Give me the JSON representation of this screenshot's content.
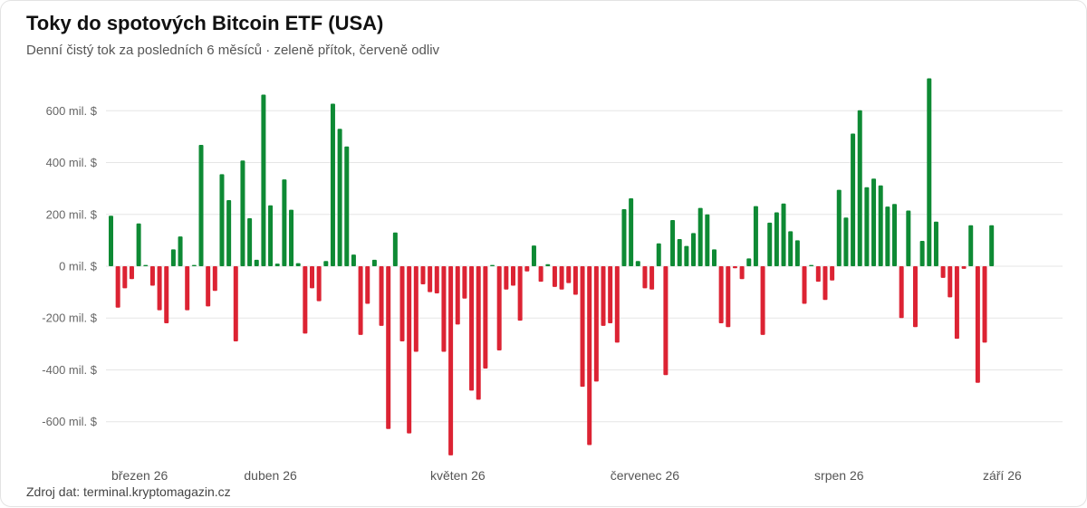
{
  "title": "Toky do spotových Bitcoin ETF (USA)",
  "subtitle": "Denní čistý tok za posledních 6 měsíců · zeleně přítok, červeně odliv",
  "source": "Zdroj dat: terminal.kryptomagazin.cz",
  "colors": {
    "inflow": "#0e8a34",
    "outflow": "#dc2333",
    "grid": "#e6e6e6",
    "text": "#111111",
    "muted": "#666666"
  },
  "chart_data": {
    "type": "bar",
    "ylabel": "",
    "xlabel": "",
    "unit": "mil. $",
    "ylim": [
      -720,
      720
    ],
    "y_ticks": [
      {
        "value": 600,
        "label": "600 mil. $"
      },
      {
        "value": 400,
        "label": "400 mil. $"
      },
      {
        "value": 200,
        "label": "200 mil. $"
      },
      {
        "value": 0,
        "label": "0 mil. $"
      },
      {
        "value": -200,
        "label": "-200 mil. $"
      },
      {
        "value": -400,
        "label": "-400 mil. $"
      },
      {
        "value": -600,
        "label": "-600 mil. $"
      }
    ],
    "x_ticks": [
      {
        "index": 0,
        "label": "březen 26"
      },
      {
        "index": 23,
        "label": "duben 26"
      },
      {
        "index": 50,
        "label": "květen 26"
      },
      {
        "index": 77,
        "label": "červenec 26"
      },
      {
        "index": 105,
        "label": "srpen 26"
      },
      {
        "index": 131,
        "label": "září 26"
      }
    ],
    "grid": true,
    "legend": "none",
    "values": [
      195,
      -160,
      -85,
      -50,
      165,
      5,
      -75,
      -170,
      -220,
      65,
      115,
      -170,
      5,
      468,
      -155,
      -95,
      355,
      255,
      -290,
      408,
      185,
      25,
      662,
      235,
      10,
      335,
      218,
      12,
      -260,
      -85,
      -135,
      20,
      627,
      530,
      462,
      45,
      -265,
      -145,
      25,
      -230,
      -628,
      130,
      -290,
      -645,
      -330,
      -70,
      -100,
      -105,
      -330,
      -730,
      -225,
      -125,
      -480,
      -515,
      -395,
      5,
      -325,
      -90,
      -75,
      -210,
      -20,
      80,
      -60,
      8,
      -80,
      -90,
      -65,
      -110,
      -465,
      -690,
      -445,
      -230,
      -220,
      -295,
      220,
      262,
      20,
      -85,
      -90,
      88,
      -420,
      178,
      105,
      78,
      128,
      225,
      200,
      65,
      -220,
      -235,
      -8,
      -50,
      30,
      232,
      -265,
      168,
      208,
      242,
      135,
      100,
      -145,
      5,
      -60,
      -130,
      -55,
      295,
      188,
      512,
      602,
      305,
      338,
      312,
      230,
      240,
      -200,
      215,
      -235,
      98,
      725,
      172,
      -45,
      -120,
      -280,
      -10,
      158,
      -450,
      -295,
      158
    ]
  }
}
